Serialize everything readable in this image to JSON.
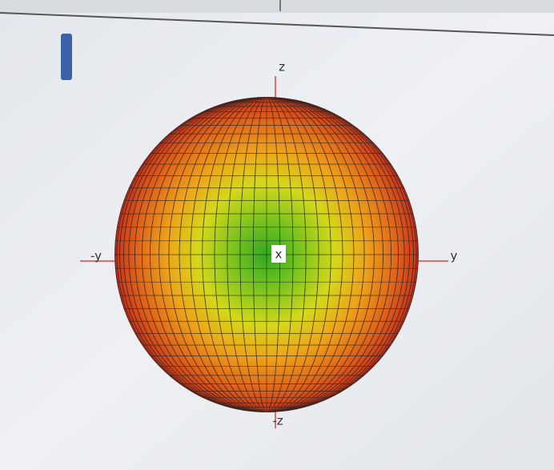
{
  "axes": {
    "z": "z",
    "minus_y": "-y",
    "y": "y",
    "minus_z": "-z",
    "x": "x"
  }
}
